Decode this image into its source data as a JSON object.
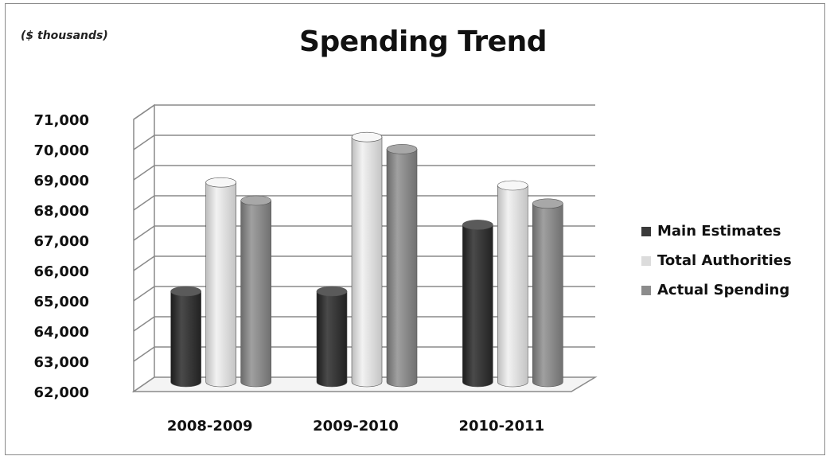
{
  "chart_data": {
    "type": "bar",
    "title": "Spending Trend",
    "unit_label": "($ thousands)",
    "categories": [
      "2008-2009",
      "2009-2010",
      "2010-2011"
    ],
    "series": [
      {
        "name": "Main Estimates",
        "color": "#3a3a3a",
        "values": [
          65000,
          65000,
          67200
        ]
      },
      {
        "name": "Total Authorities",
        "color": "#dcdcdc",
        "values": [
          68600,
          70100,
          68500
        ]
      },
      {
        "name": "Actual Spending",
        "color": "#8c8c8c",
        "values": [
          68000,
          69700,
          67900
        ]
      }
    ],
    "ylim": [
      62000,
      71000
    ],
    "y_ticks": [
      "62,000",
      "63,000",
      "64,000",
      "65,000",
      "66,000",
      "67,000",
      "68,000",
      "69,000",
      "70,000",
      "71,000"
    ],
    "grid": true,
    "legend_position": "right",
    "style": "3d-cylinder"
  }
}
